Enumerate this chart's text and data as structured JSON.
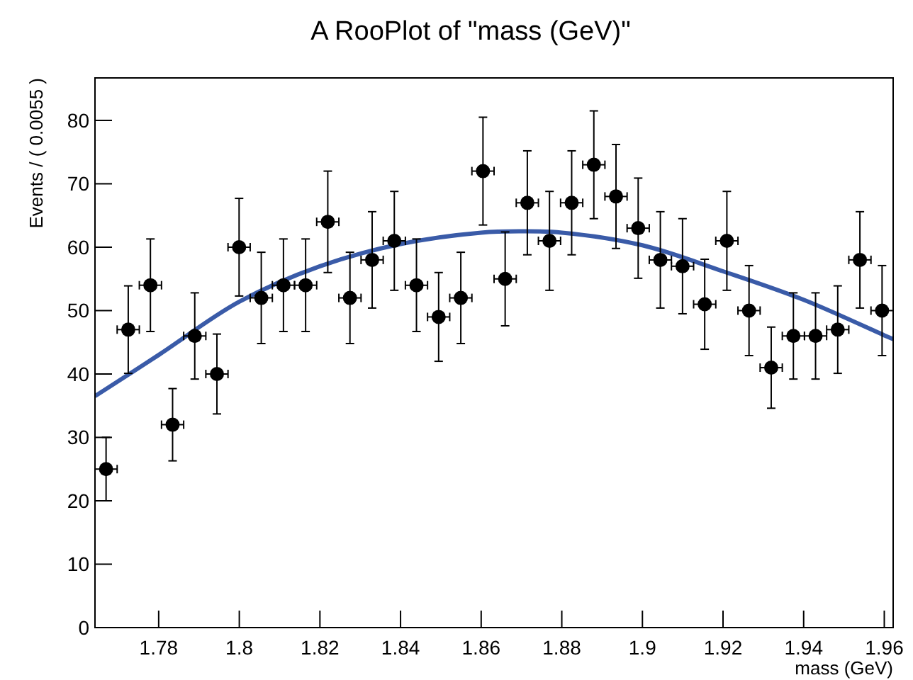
{
  "chart_data": {
    "type": "scatter",
    "title": "A RooPlot of \"mass (GeV)\"",
    "xlabel": "mass (GeV)",
    "ylabel": "Events / ( 0.0055 )",
    "xlim": [
      1.7642,
      1.9622
    ],
    "ylim": [
      0,
      86.7
    ],
    "xticks": [
      {
        "value": 1.78,
        "label": "1.78"
      },
      {
        "value": 1.8,
        "label": "1.8"
      },
      {
        "value": 1.82,
        "label": "1.82"
      },
      {
        "value": 1.84,
        "label": "1.84"
      },
      {
        "value": 1.86,
        "label": "1.86"
      },
      {
        "value": 1.88,
        "label": "1.88"
      },
      {
        "value": 1.9,
        "label": "1.9"
      },
      {
        "value": 1.92,
        "label": "1.92"
      },
      {
        "value": 1.94,
        "label": "1.94"
      },
      {
        "value": 1.96,
        "label": "1.96"
      }
    ],
    "yticks": [
      0,
      10,
      20,
      30,
      40,
      50,
      60,
      70,
      80
    ],
    "series": [
      {
        "marker": "circle",
        "color": "#000000",
        "x": [
          1.76695,
          1.77245,
          1.77795,
          1.78345,
          1.78895,
          1.79445,
          1.79995,
          1.80545,
          1.81095,
          1.81645,
          1.82195,
          1.82745,
          1.83295,
          1.83845,
          1.84395,
          1.84945,
          1.85495,
          1.86045,
          1.86595,
          1.87145,
          1.87695,
          1.88245,
          1.88795,
          1.89345,
          1.89895,
          1.90445,
          1.90995,
          1.91545,
          1.92095,
          1.92645,
          1.93195,
          1.93745,
          1.94295,
          1.94845,
          1.95395,
          1.95945
        ],
        "values": [
          25,
          47,
          54,
          32,
          46,
          40,
          60,
          52,
          54,
          54,
          64,
          52,
          58,
          61,
          54,
          49,
          52,
          72,
          55,
          67,
          61,
          67,
          73,
          68,
          63,
          58,
          57,
          51,
          61,
          50,
          41,
          46,
          46,
          47,
          58,
          50
        ],
        "errors": [
          5,
          6.9,
          7.3,
          5.7,
          6.8,
          6.3,
          7.7,
          7.2,
          7.3,
          7.3,
          8,
          7.2,
          7.6,
          7.8,
          7.3,
          7,
          7.2,
          8.5,
          7.4,
          8.2,
          7.8,
          8.2,
          8.5,
          8.2,
          7.9,
          7.6,
          7.5,
          7.1,
          7.8,
          7.1,
          6.4,
          6.8,
          6.8,
          6.9,
          7.6,
          7.1
        ],
        "xerrors": [
          0.00275,
          0.00275,
          0.00275,
          0.00275,
          0.00275,
          0.00275,
          0.00275,
          0.00275,
          0.00275,
          0.00275,
          0.00275,
          0.00275,
          0.00275,
          0.00275,
          0.00275,
          0.00275,
          0.00275,
          0.00275,
          0.00275,
          0.00275,
          0.00275,
          0.00275,
          0.00275,
          0.00275,
          0.00275,
          0.00275,
          0.00275,
          0.00275,
          0.00275,
          0.00275,
          0.00275,
          0.00275,
          0.00275,
          0.00275,
          0.00275,
          0.00275
        ]
      },
      {
        "type": "line",
        "color": "#3a5ba8",
        "x": [
          1.7642,
          1.78,
          1.8,
          1.82,
          1.84,
          1.86,
          1.87,
          1.88,
          1.9,
          1.92,
          1.94,
          1.96,
          1.9622
        ],
        "values": [
          36.5,
          43,
          51.4,
          57,
          60.5,
          62.3,
          62.5,
          62.3,
          60.3,
          56.2,
          51.7,
          46.1,
          45.5
        ]
      }
    ]
  }
}
